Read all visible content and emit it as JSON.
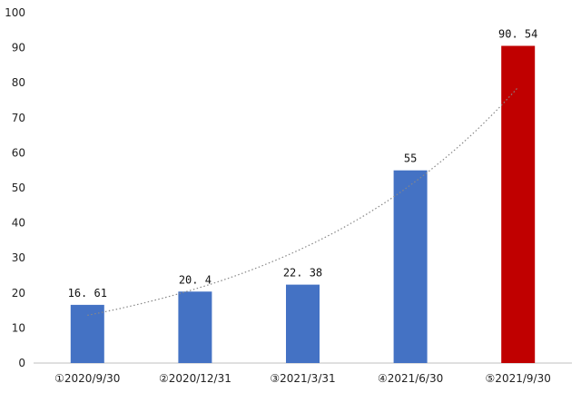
{
  "chart_data": {
    "type": "bar",
    "categories": [
      "①2020/9/30",
      "②2020/12/31",
      "③2021/3/31",
      "④2021/6/30",
      "⑤2021/9/30"
    ],
    "values": [
      16.61,
      20.4,
      22.38,
      55,
      90.54
    ],
    "data_labels": [
      "16. 61",
      "20. 4",
      "22. 38",
      "55",
      "90. 54"
    ],
    "y_ticks": [
      "0",
      "10",
      "20",
      "30",
      "40",
      "50",
      "60",
      "70",
      "80",
      "90",
      "100"
    ],
    "ylim": [
      0,
      100
    ],
    "trendline": {
      "style": "dotted",
      "kind": "exponential"
    },
    "colors": {
      "bar": "#4472c4",
      "highlight_bar": "#c00000",
      "axis": "#bfbfbf",
      "trendline": "#888888"
    },
    "highlight_index": 4,
    "grid": false,
    "legend": "none"
  }
}
